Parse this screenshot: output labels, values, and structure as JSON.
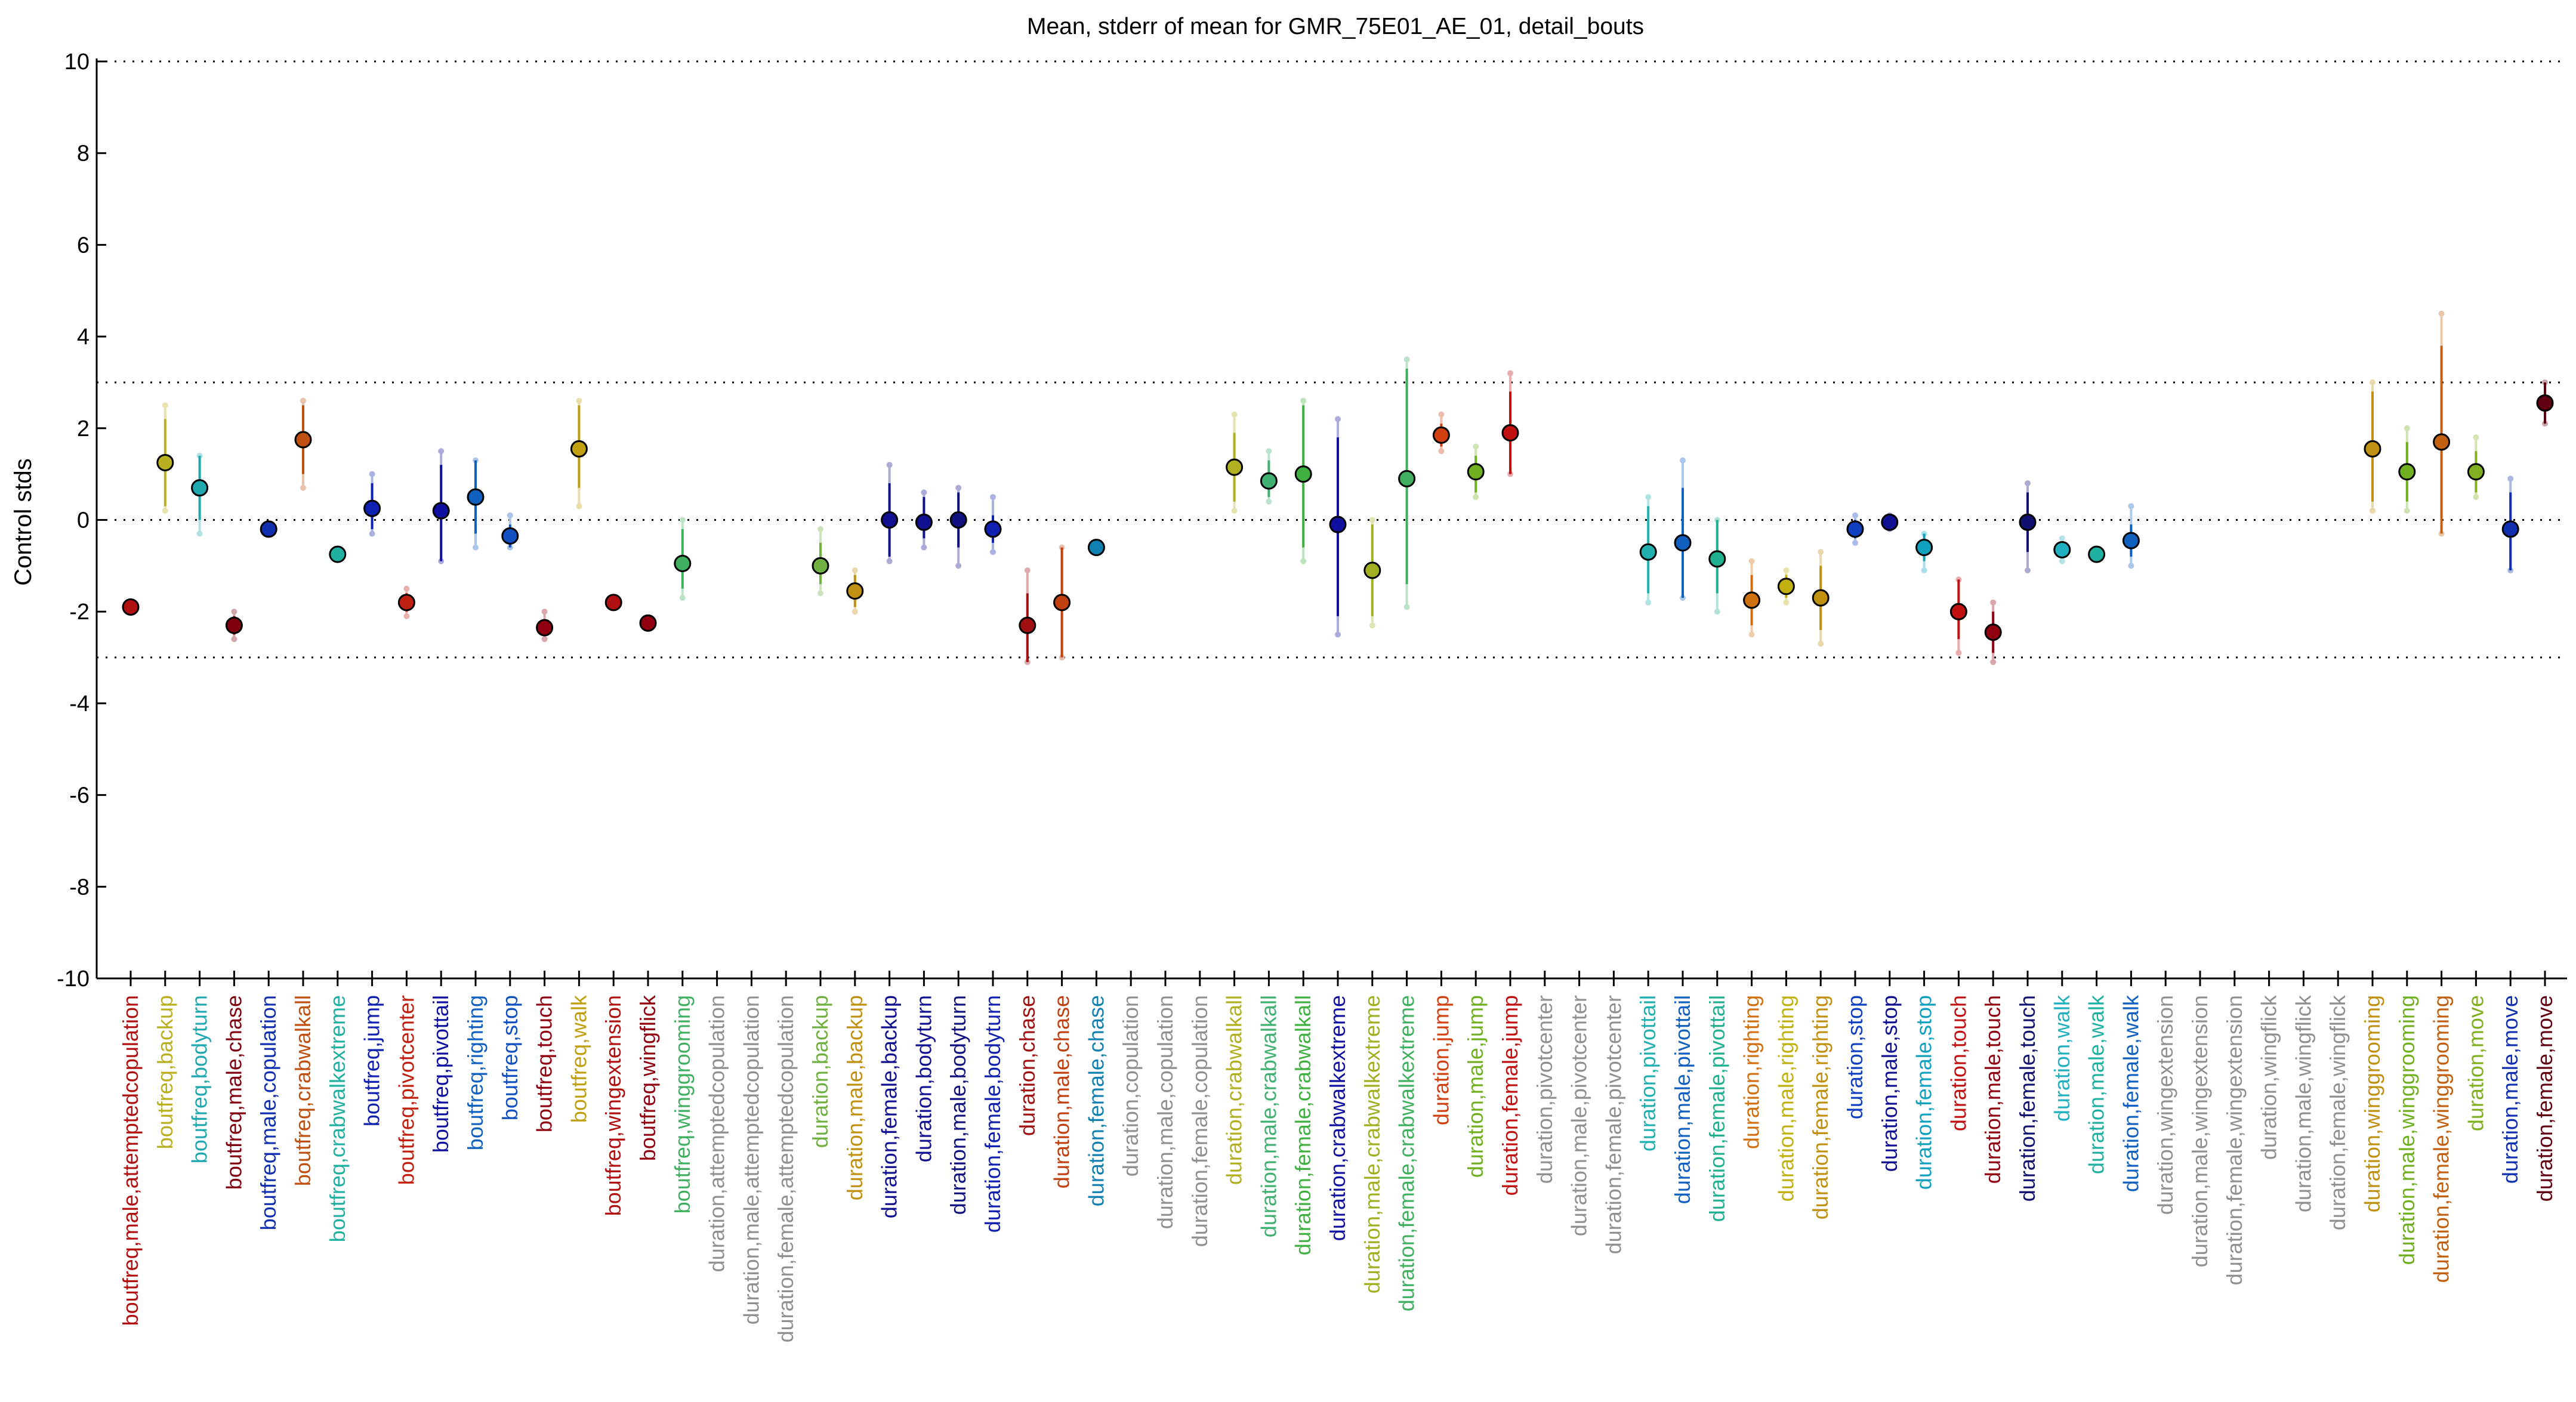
{
  "chart_data": {
    "type": "scatter",
    "title": "Mean, stderr of mean for GMR_75E01_AE_01, detail_bouts",
    "ylabel": "Control stds",
    "xlabel": "",
    "ylim": [
      -10,
      10
    ],
    "yticks": [
      10,
      8,
      6,
      4,
      2,
      0,
      -2,
      -4,
      -6,
      -8,
      -10
    ],
    "reference_lines": [
      10,
      3,
      0,
      -3,
      -10
    ],
    "grid": false,
    "legend": "none",
    "points": [
      {
        "label": "boutfreq,male,attemptedcopulation",
        "color": "#b01010",
        "mean": -1.9,
        "stderr_low": -1.9,
        "stderr_high": -1.9,
        "range_low": -1.9,
        "range_high": -1.9
      },
      {
        "label": "boutfreq,backup",
        "color": "#b8b020",
        "mean": 1.25,
        "stderr_low": 0.3,
        "stderr_high": 2.2,
        "range_low": 0.2,
        "range_high": 2.5
      },
      {
        "label": "boutfreq,bodyturn",
        "color": "#20a8b0",
        "mean": 0.7,
        "stderr_low": 0.0,
        "stderr_high": 1.4,
        "range_low": -0.3,
        "range_high": 1.4
      },
      {
        "label": "boutfreq,male,chase",
        "color": "#800010",
        "mean": -2.3,
        "stderr_low": -2.5,
        "stderr_high": -2.1,
        "range_low": -2.6,
        "range_high": -2.0
      },
      {
        "label": "boutfreq,male,copulation",
        "color": "#1030b0",
        "mean": -0.2,
        "stderr_low": -0.2,
        "stderr_high": -0.2,
        "range_low": -0.2,
        "range_high": -0.2
      },
      {
        "label": "boutfreq,crabwalkall",
        "color": "#c05010",
        "mean": 1.75,
        "stderr_low": 1.0,
        "stderr_high": 2.5,
        "range_low": 0.7,
        "range_high": 2.6
      },
      {
        "label": "boutfreq,crabwalkextreme",
        "color": "#20b0a0",
        "mean": -0.75,
        "stderr_low": -0.75,
        "stderr_high": -0.75,
        "range_low": -0.75,
        "range_high": -0.75
      },
      {
        "label": "boutfreq,jump",
        "color": "#1020b0",
        "mean": 0.25,
        "stderr_low": -0.2,
        "stderr_high": 0.8,
        "range_low": -0.3,
        "range_high": 1.0
      },
      {
        "label": "boutfreq,pivotcenter",
        "color": "#c02010",
        "mean": -1.8,
        "stderr_low": -2.0,
        "stderr_high": -1.6,
        "range_low": -2.1,
        "range_high": -1.5
      },
      {
        "label": "boutfreq,pivottail",
        "color": "#1010a0",
        "mean": 0.2,
        "stderr_low": -0.9,
        "stderr_high": 1.2,
        "range_low": -0.9,
        "range_high": 1.5
      },
      {
        "label": "boutfreq,righting",
        "color": "#1060c0",
        "mean": 0.5,
        "stderr_low": -0.3,
        "stderr_high": 1.3,
        "range_low": -0.6,
        "range_high": 1.3
      },
      {
        "label": "boutfreq,stop",
        "color": "#1050c0",
        "mean": -0.35,
        "stderr_low": -0.6,
        "stderr_high": -0.1,
        "range_low": -0.6,
        "range_high": 0.1
      },
      {
        "label": "boutfreq,touch",
        "color": "#900010",
        "mean": -2.35,
        "stderr_low": -2.5,
        "stderr_high": -2.2,
        "range_low": -2.6,
        "range_high": -2.0
      },
      {
        "label": "boutfreq,walk",
        "color": "#c0a010",
        "mean": 1.55,
        "stderr_low": 0.7,
        "stderr_high": 2.5,
        "range_low": 0.3,
        "range_high": 2.6
      },
      {
        "label": "boutfreq,wingextension",
        "color": "#b01010",
        "mean": -1.8,
        "stderr_low": -1.8,
        "stderr_high": -1.8,
        "range_low": -1.8,
        "range_high": -1.8
      },
      {
        "label": "boutfreq,wingflick",
        "color": "#900010",
        "mean": -2.25,
        "stderr_low": -2.25,
        "stderr_high": -2.25,
        "range_low": -2.25,
        "range_high": -2.25
      },
      {
        "label": "boutfreq,winggrooming",
        "color": "#40b060",
        "mean": -0.95,
        "stderr_low": -1.5,
        "stderr_high": -0.2,
        "range_low": -1.7,
        "range_high": 0.0
      },
      {
        "label": "duration,attemptedcopulation",
        "color": "#909090"
      },
      {
        "label": "duration,male,attemptedcopulation",
        "color": "#909090"
      },
      {
        "label": "duration,female,attemptedcopulation",
        "color": "#909090"
      },
      {
        "label": "duration,backup",
        "color": "#70b040",
        "mean": -1.0,
        "stderr_low": -1.4,
        "stderr_high": -0.5,
        "range_low": -1.6,
        "range_high": -0.2
      },
      {
        "label": "duration,male,backup",
        "color": "#c09010",
        "mean": -1.55,
        "stderr_low": -1.9,
        "stderr_high": -1.2,
        "range_low": -2.0,
        "range_high": -1.1
      },
      {
        "label": "duration,female,backup",
        "color": "#101090",
        "mean": 0.0,
        "stderr_low": -0.8,
        "stderr_high": 0.8,
        "range_low": -0.9,
        "range_high": 1.2
      },
      {
        "label": "duration,bodyturn",
        "color": "#101090",
        "mean": -0.05,
        "stderr_low": -0.4,
        "stderr_high": 0.5,
        "range_low": -0.6,
        "range_high": 0.6
      },
      {
        "label": "duration,male,bodyturn",
        "color": "#101080",
        "mean": 0.0,
        "stderr_low": -0.6,
        "stderr_high": 0.6,
        "range_low": -1.0,
        "range_high": 0.7
      },
      {
        "label": "duration,female,bodyturn",
        "color": "#1020b0",
        "mean": -0.2,
        "stderr_low": -0.5,
        "stderr_high": 0.1,
        "range_low": -0.7,
        "range_high": 0.5
      },
      {
        "label": "duration,chase",
        "color": "#a01010",
        "mean": -2.3,
        "stderr_low": -3.1,
        "stderr_high": -1.6,
        "range_low": -3.1,
        "range_high": -1.1
      },
      {
        "label": "duration,male,chase",
        "color": "#c04010",
        "mean": -1.8,
        "stderr_low": -3.0,
        "stderr_high": -0.6,
        "range_low": -3.0,
        "range_high": -0.6
      },
      {
        "label": "duration,female,chase",
        "color": "#1080b0",
        "mean": -0.6,
        "stderr_low": -0.6,
        "stderr_high": -0.6,
        "range_low": -0.6,
        "range_high": -0.6
      },
      {
        "label": "duration,copulation",
        "color": "#909090"
      },
      {
        "label": "duration,male,copulation",
        "color": "#909090"
      },
      {
        "label": "duration,female,copulation",
        "color": "#909090"
      },
      {
        "label": "duration,crabwalkall",
        "color": "#b0b020",
        "mean": 1.15,
        "stderr_low": 0.4,
        "stderr_high": 1.9,
        "range_low": 0.2,
        "range_high": 2.3
      },
      {
        "label": "duration,male,crabwalkall",
        "color": "#40b070",
        "mean": 0.85,
        "stderr_low": 0.5,
        "stderr_high": 1.3,
        "range_low": 0.4,
        "range_high": 1.5
      },
      {
        "label": "duration,female,crabwalkall",
        "color": "#40b040",
        "mean": 1.0,
        "stderr_low": -0.6,
        "stderr_high": 2.5,
        "range_low": -0.9,
        "range_high": 2.6
      },
      {
        "label": "duration,crabwalkextreme",
        "color": "#1010a0",
        "mean": -0.1,
        "stderr_low": -2.1,
        "stderr_high": 1.8,
        "range_low": -2.5,
        "range_high": 2.2
      },
      {
        "label": "duration,male,crabwalkextreme",
        "color": "#a0b020",
        "mean": -1.1,
        "stderr_low": -2.1,
        "stderr_high": -0.1,
        "range_low": -2.3,
        "range_high": 0.0
      },
      {
        "label": "duration,female,crabwalkextreme",
        "color": "#40b060",
        "mean": 0.9,
        "stderr_low": -1.4,
        "stderr_high": 3.3,
        "range_low": -1.9,
        "range_high": 3.5
      },
      {
        "label": "duration,jump",
        "color": "#d04010",
        "mean": 1.85,
        "stderr_low": 1.6,
        "stderr_high": 2.1,
        "range_low": 1.5,
        "range_high": 2.3
      },
      {
        "label": "duration,male,jump",
        "color": "#70b020",
        "mean": 1.05,
        "stderr_low": 0.6,
        "stderr_high": 1.4,
        "range_low": 0.5,
        "range_high": 1.6
      },
      {
        "label": "duration,female,jump",
        "color": "#c01010",
        "mean": 1.9,
        "stderr_low": 1.0,
        "stderr_high": 2.8,
        "range_low": 1.0,
        "range_high": 3.2
      },
      {
        "label": "duration,pivotcenter",
        "color": "#909090"
      },
      {
        "label": "duration,male,pivotcenter",
        "color": "#909090"
      },
      {
        "label": "duration,female,pivotcenter",
        "color": "#909090"
      },
      {
        "label": "duration,pivottail",
        "color": "#20b0b0",
        "mean": -0.7,
        "stderr_low": -1.6,
        "stderr_high": 0.3,
        "range_low": -1.8,
        "range_high": 0.5
      },
      {
        "label": "duration,male,pivottail",
        "color": "#1060c0",
        "mean": -0.5,
        "stderr_low": -1.7,
        "stderr_high": 0.7,
        "range_low": -1.7,
        "range_high": 1.3
      },
      {
        "label": "duration,female,pivottail",
        "color": "#20b090",
        "mean": -0.85,
        "stderr_low": -1.6,
        "stderr_high": 0.0,
        "range_low": -2.0,
        "range_high": 0.0
      },
      {
        "label": "duration,righting",
        "color": "#d07010",
        "mean": -1.75,
        "stderr_low": -2.3,
        "stderr_high": -1.2,
        "range_low": -2.5,
        "range_high": -0.9
      },
      {
        "label": "duration,male,righting",
        "color": "#c0b010",
        "mean": -1.45,
        "stderr_low": -1.7,
        "stderr_high": -1.2,
        "range_low": -1.8,
        "range_high": -1.1
      },
      {
        "label": "duration,female,righting",
        "color": "#c09010",
        "mean": -1.7,
        "stderr_low": -2.4,
        "stderr_high": -1.0,
        "range_low": -2.7,
        "range_high": -0.7
      },
      {
        "label": "duration,stop",
        "color": "#1040c0",
        "mean": -0.2,
        "stderr_low": -0.4,
        "stderr_high": 0.0,
        "range_low": -0.5,
        "range_high": 0.1
      },
      {
        "label": "duration,male,stop",
        "color": "#101090",
        "mean": -0.05,
        "stderr_low": -0.15,
        "stderr_high": 0.05,
        "range_low": -0.2,
        "range_high": 0.1
      },
      {
        "label": "duration,female,stop",
        "color": "#10a0c0",
        "mean": -0.6,
        "stderr_low": -0.9,
        "stderr_high": -0.3,
        "range_low": -1.1,
        "range_high": -0.3
      },
      {
        "label": "duration,touch",
        "color": "#c01010",
        "mean": -2.0,
        "stderr_low": -2.6,
        "stderr_high": -1.3,
        "range_low": -2.9,
        "range_high": -1.3
      },
      {
        "label": "duration,male,touch",
        "color": "#900010",
        "mean": -2.45,
        "stderr_low": -2.9,
        "stderr_high": -2.0,
        "range_low": -3.1,
        "range_high": -1.8
      },
      {
        "label": "duration,female,touch",
        "color": "#101070",
        "mean": -0.05,
        "stderr_low": -0.7,
        "stderr_high": 0.6,
        "range_low": -1.1,
        "range_high": 0.8
      },
      {
        "label": "duration,walk",
        "color": "#20b0c0",
        "mean": -0.65,
        "stderr_low": -0.8,
        "stderr_high": -0.5,
        "range_low": -0.9,
        "range_high": -0.4
      },
      {
        "label": "duration,male,walk",
        "color": "#20b0a0",
        "mean": -0.75,
        "stderr_low": -0.75,
        "stderr_high": -0.75,
        "range_low": -0.75,
        "range_high": -0.75
      },
      {
        "label": "duration,female,walk",
        "color": "#1060c0",
        "mean": -0.45,
        "stderr_low": -0.8,
        "stderr_high": -0.1,
        "range_low": -1.0,
        "range_high": 0.3
      },
      {
        "label": "duration,wingextension",
        "color": "#909090"
      },
      {
        "label": "duration,male,wingextension",
        "color": "#909090"
      },
      {
        "label": "duration,female,wingextension",
        "color": "#909090"
      },
      {
        "label": "duration,wingflick",
        "color": "#909090"
      },
      {
        "label": "duration,male,wingflick",
        "color": "#909090"
      },
      {
        "label": "duration,female,wingflick",
        "color": "#909090"
      },
      {
        "label": "duration,winggrooming",
        "color": "#c09010",
        "mean": 1.55,
        "stderr_low": 0.4,
        "stderr_high": 2.8,
        "range_low": 0.2,
        "range_high": 3.0
      },
      {
        "label": "duration,male,winggrooming",
        "color": "#70b020",
        "mean": 1.05,
        "stderr_low": 0.4,
        "stderr_high": 1.7,
        "range_low": 0.2,
        "range_high": 2.0
      },
      {
        "label": "duration,female,winggrooming",
        "color": "#c06010",
        "mean": 1.7,
        "stderr_low": -0.3,
        "stderr_high": 3.8,
        "range_low": -0.3,
        "range_high": 4.5
      },
      {
        "label": "duration,move",
        "color": "#80b020",
        "mean": 1.05,
        "stderr_low": 0.6,
        "stderr_high": 1.5,
        "range_low": 0.5,
        "range_high": 1.8
      },
      {
        "label": "duration,male,move",
        "color": "#1030b0",
        "mean": -0.2,
        "stderr_low": -1.1,
        "stderr_high": 0.6,
        "range_low": -1.1,
        "range_high": 0.9
      },
      {
        "label": "duration,female,move",
        "color": "#600010",
        "mean": 2.55,
        "stderr_low": 2.1,
        "stderr_high": 3.0,
        "range_low": 2.1,
        "range_high": 3.0
      }
    ]
  }
}
